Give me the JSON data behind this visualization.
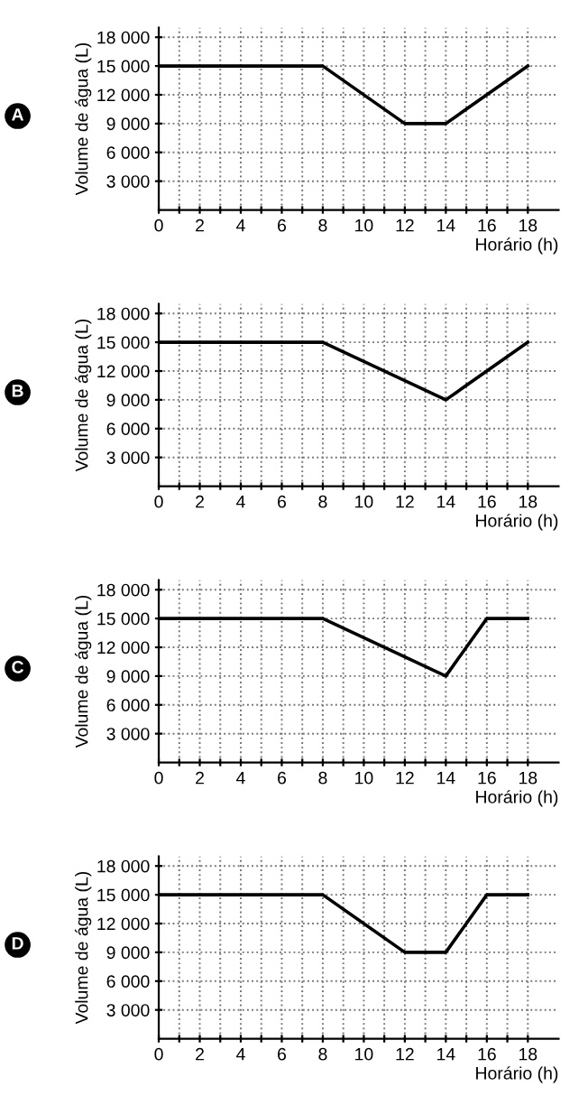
{
  "chart_data": [
    {
      "type": "line",
      "annotations": [
        "A"
      ],
      "xlabel": "Horário (h)",
      "ylabel": "Volume de água (L)",
      "x": [
        0,
        8,
        12,
        14,
        18
      ],
      "series": [
        {
          "color": "#000000",
          "values": [
            15000,
            15000,
            9000,
            9000,
            15000
          ]
        }
      ],
      "xlim": [
        0,
        19.5
      ],
      "ylim": [
        0,
        19000
      ],
      "xticks": [
        0,
        {
          "value": 1,
          "label": null
        },
        2,
        {
          "value": 3,
          "label": null
        },
        4,
        {
          "value": 5,
          "label": null
        },
        6,
        {
          "value": 7,
          "label": null
        },
        8,
        {
          "value": 9,
          "label": null
        },
        10,
        {
          "value": 11,
          "label": null
        },
        12,
        {
          "value": 13,
          "label": null
        },
        14,
        {
          "value": 15,
          "label": null
        },
        16,
        {
          "value": 17,
          "label": null
        },
        18
      ],
      "yticks": [
        {
          "value": 3000,
          "label": "3 000"
        },
        {
          "value": 6000,
          "label": "6 000"
        },
        {
          "value": 9000,
          "label": "9 000"
        },
        {
          "value": 12000,
          "label": "12 000"
        },
        {
          "value": 15000,
          "label": "15 000"
        },
        {
          "value": 18000,
          "label": "18 000"
        }
      ],
      "grid": true,
      "line_style": "solid",
      "legend": false
    },
    {
      "type": "line",
      "annotations": [
        "B"
      ],
      "xlabel": "Horário (h)",
      "ylabel": "Volume de água (L)",
      "x": [
        0,
        8,
        14,
        18
      ],
      "series": [
        {
          "color": "#000000",
          "values": [
            15000,
            15000,
            9000,
            15000
          ]
        }
      ],
      "xlim": [
        0,
        19.5
      ],
      "ylim": [
        0,
        19000
      ],
      "xticks": [
        0,
        {
          "value": 1,
          "label": null
        },
        2,
        {
          "value": 3,
          "label": null
        },
        4,
        {
          "value": 5,
          "label": null
        },
        6,
        {
          "value": 7,
          "label": null
        },
        8,
        {
          "value": 9,
          "label": null
        },
        10,
        {
          "value": 11,
          "label": null
        },
        12,
        {
          "value": 13,
          "label": null
        },
        14,
        {
          "value": 15,
          "label": null
        },
        16,
        {
          "value": 17,
          "label": null
        },
        18
      ],
      "yticks": [
        {
          "value": 3000,
          "label": "3 000"
        },
        {
          "value": 6000,
          "label": "6 000"
        },
        {
          "value": 9000,
          "label": "9 000"
        },
        {
          "value": 12000,
          "label": "12 000"
        },
        {
          "value": 15000,
          "label": "15 000"
        },
        {
          "value": 18000,
          "label": "18 000"
        }
      ],
      "grid": true,
      "line_style": "solid",
      "legend": false
    },
    {
      "type": "line",
      "annotations": [
        "C"
      ],
      "xlabel": "Horário (h)",
      "ylabel": "Volume de água (L)",
      "x": [
        0,
        8,
        14,
        16,
        18
      ],
      "series": [
        {
          "color": "#000000",
          "values": [
            15000,
            15000,
            9000,
            15000,
            15000
          ]
        }
      ],
      "xlim": [
        0,
        19.5
      ],
      "ylim": [
        0,
        19000
      ],
      "xticks": [
        0,
        {
          "value": 1,
          "label": null
        },
        2,
        {
          "value": 3,
          "label": null
        },
        4,
        {
          "value": 5,
          "label": null
        },
        6,
        {
          "value": 7,
          "label": null
        },
        8,
        {
          "value": 9,
          "label": null
        },
        10,
        {
          "value": 11,
          "label": null
        },
        12,
        {
          "value": 13,
          "label": null
        },
        14,
        {
          "value": 15,
          "label": null
        },
        16,
        {
          "value": 17,
          "label": null
        },
        18
      ],
      "yticks": [
        {
          "value": 3000,
          "label": "3 000"
        },
        {
          "value": 6000,
          "label": "6 000"
        },
        {
          "value": 9000,
          "label": "9 000"
        },
        {
          "value": 12000,
          "label": "12 000"
        },
        {
          "value": 15000,
          "label": "15 000"
        },
        {
          "value": 18000,
          "label": "18 000"
        }
      ],
      "grid": true,
      "line_style": "solid",
      "legend": false
    },
    {
      "type": "line",
      "annotations": [
        "D"
      ],
      "xlabel": "Horário (h)",
      "ylabel": "Volume de água (L)",
      "x": [
        0,
        8,
        12,
        14,
        16,
        18
      ],
      "series": [
        {
          "color": "#000000",
          "values": [
            15000,
            15000,
            9000,
            9000,
            15000,
            15000
          ]
        }
      ],
      "xlim": [
        0,
        19.5
      ],
      "ylim": [
        0,
        19000
      ],
      "xticks": [
        0,
        {
          "value": 1,
          "label": null
        },
        2,
        {
          "value": 3,
          "label": null
        },
        4,
        {
          "value": 5,
          "label": null
        },
        6,
        {
          "value": 7,
          "label": null
        },
        8,
        {
          "value": 9,
          "label": null
        },
        10,
        {
          "value": 11,
          "label": null
        },
        12,
        {
          "value": 13,
          "label": null
        },
        14,
        {
          "value": 15,
          "label": null
        },
        16,
        {
          "value": 17,
          "label": null
        },
        18
      ],
      "yticks": [
        {
          "value": 3000,
          "label": "3 000"
        },
        {
          "value": 6000,
          "label": "6 000"
        },
        {
          "value": 9000,
          "label": "9 000"
        },
        {
          "value": 12000,
          "label": "12 000"
        },
        {
          "value": 15000,
          "label": "15 000"
        },
        {
          "value": 18000,
          "label": "18 000"
        }
      ],
      "grid": true,
      "line_style": "solid",
      "legend": false
    }
  ]
}
